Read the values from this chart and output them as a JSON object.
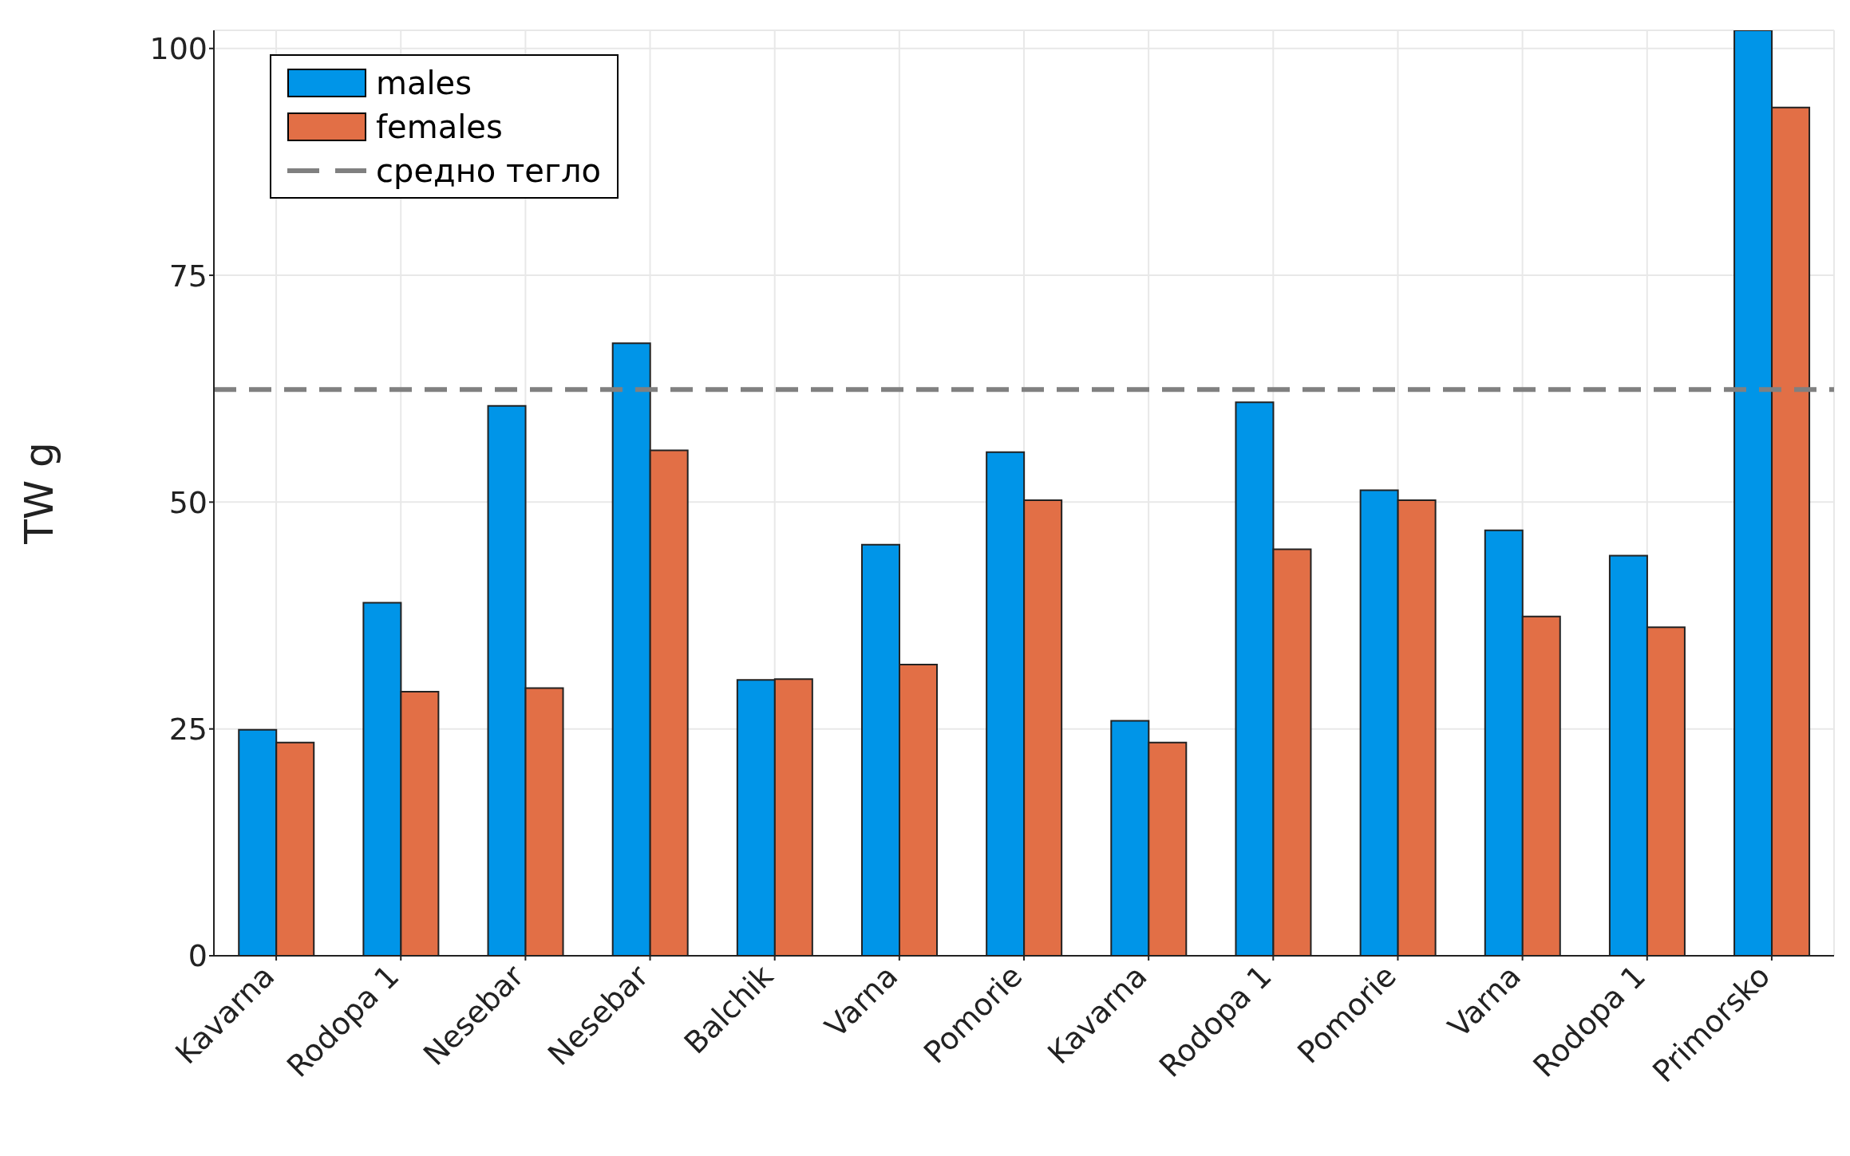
{
  "chart_data": {
    "type": "bar",
    "ylabel": "TW g",
    "categories": [
      "Kavarna",
      "Rodopa 1",
      "Nesebar",
      "Nesebar",
      "Balchik",
      "Varna",
      "Pomorie",
      "Kavarna",
      "Rodopa 1",
      "Pomorie",
      "Varna",
      "Rodopa 1",
      "Primorsko"
    ],
    "series": [
      {
        "name": "males",
        "color": "#0095e8",
        "values": [
          24.9,
          38.9,
          60.6,
          67.5,
          30.4,
          45.3,
          55.5,
          25.9,
          61.0,
          51.3,
          46.9,
          44.1,
          102
        ]
      },
      {
        "name": "females",
        "color": "#e26f46",
        "values": [
          23.5,
          29.1,
          29.5,
          55.7,
          30.5,
          32.1,
          50.2,
          23.5,
          44.8,
          50.2,
          37.4,
          36.2,
          93.5
        ]
      }
    ],
    "ylim": [
      0,
      102
    ],
    "yticks": [
      0,
      25,
      50,
      75,
      100
    ],
    "grid": true,
    "legend": "top left",
    "ref_lines": [
      {
        "axis": "y",
        "value": 62.4,
        "label": "средно тегло",
        "color": "#808080",
        "line_style": "dashed"
      }
    ]
  }
}
